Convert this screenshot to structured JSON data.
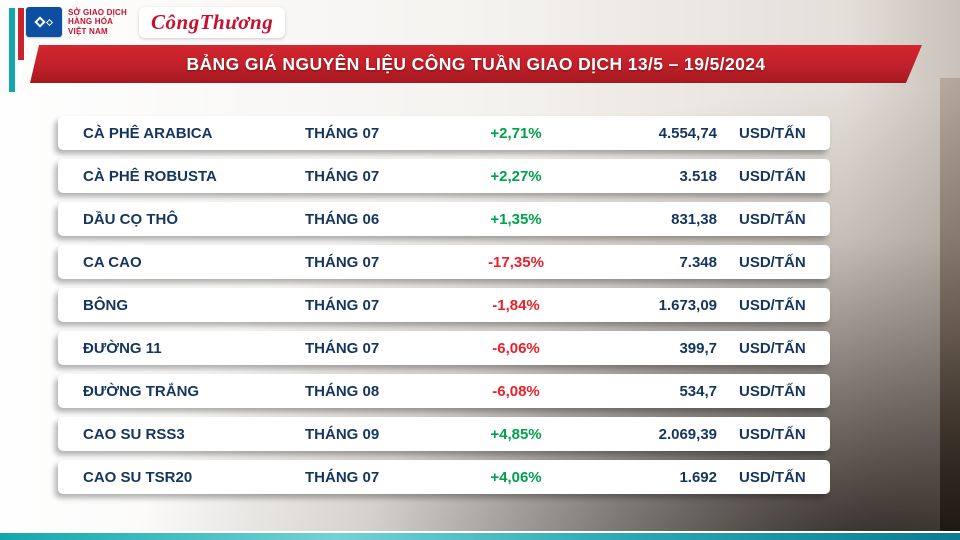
{
  "header": {
    "mxv_logo": {
      "line1": "SỞ GIAO DỊCH",
      "line2": "HÀNG HÓA",
      "line3": "VIỆT NAM"
    },
    "congthuong_logo": "CôngThương",
    "title": "BẢNG GIÁ NGUYÊN LIỆU CÔNG TUẦN GIAO DỊCH 13/5 – 19/5/2024"
  },
  "table": {
    "rows": [
      {
        "name": "CÀ PHÊ ARABICA",
        "month": "THÁNG 07",
        "change": "+2,71%",
        "price": "4.554,74",
        "unit": "USD/TẤN"
      },
      {
        "name": "CÀ PHÊ ROBUSTA",
        "month": "THÁNG 07",
        "change": "+2,27%",
        "price": "3.518",
        "unit": "USD/TẤN"
      },
      {
        "name": "DẦU CỌ THÔ",
        "month": "THÁNG 06",
        "change": "+1,35%",
        "price": "831,38",
        "unit": "USD/TẤN"
      },
      {
        "name": "CA CAO",
        "month": "THÁNG 07",
        "change": "-17,35%",
        "price": "7.348",
        "unit": "USD/TẤN"
      },
      {
        "name": "BÔNG",
        "month": "THÁNG 07",
        "change": "-1,84%",
        "price": "1.673,09",
        "unit": "USD/TẤN"
      },
      {
        "name": "ĐƯỜNG 11",
        "month": "THÁNG 07",
        "change": "-6,06%",
        "price": "399,7",
        "unit": "USD/TẤN"
      },
      {
        "name": "ĐƯỜNG TRẮNG",
        "month": "THÁNG 08",
        "change": "-6,08%",
        "price": "534,7",
        "unit": "USD/TẤN"
      },
      {
        "name": "CAO SU RSS3",
        "month": "THÁNG 09",
        "change": "+4,85%",
        "price": "2.069,39",
        "unit": "USD/TẤN"
      },
      {
        "name": "CAO SU TSR20",
        "month": "THÁNG 07",
        "change": "+4,06%",
        "price": "1.692",
        "unit": "USD/TẤN"
      }
    ]
  },
  "chart_data": {
    "type": "table",
    "title": "BẢNG GIÁ NGUYÊN LIỆU CÔNG TUẦN GIAO DỊCH 13/5 – 19/5/2024",
    "rows": [
      [
        "CÀ PHÊ ARABICA",
        "THÁNG 07",
        "+2,71%",
        "4.554,74",
        "USD/TẤN"
      ],
      [
        "CÀ PHÊ ROBUSTA",
        "THÁNG 07",
        "+2,27%",
        "3.518",
        "USD/TẤN"
      ],
      [
        "DẦU CỌ THÔ",
        "THÁNG 06",
        "+1,35%",
        "831,38",
        "USD/TẤN"
      ],
      [
        "CA CAO",
        "THÁNG 07",
        "-17,35%",
        "7.348",
        "USD/TẤN"
      ],
      [
        "BÔNG",
        "THÁNG 07",
        "-1,84%",
        "1.673,09",
        "USD/TẤN"
      ],
      [
        "ĐƯỜNG 11",
        "THÁNG 07",
        "-6,06%",
        "399,7",
        "USD/TẤN"
      ],
      [
        "ĐƯỜNG TRẮNG",
        "THÁNG 08",
        "-6,08%",
        "534,7",
        "USD/TẤN"
      ],
      [
        "CAO SU RSS3",
        "THÁNG 09",
        "+4,85%",
        "2.069,39",
        "USD/TẤN"
      ],
      [
        "CAO SU TSR20",
        "THÁNG 07",
        "+4,06%",
        "1.692",
        "USD/TẤN"
      ]
    ]
  },
  "colors": {
    "banner_red": "#c0202a",
    "text_navy": "#16355e",
    "positive_green": "#00a14b",
    "negative_red": "#e8212a",
    "teal_accent": "#12a7ad",
    "mxv_blue": "#0b4ea2",
    "congthuong_red": "#c8102e"
  }
}
